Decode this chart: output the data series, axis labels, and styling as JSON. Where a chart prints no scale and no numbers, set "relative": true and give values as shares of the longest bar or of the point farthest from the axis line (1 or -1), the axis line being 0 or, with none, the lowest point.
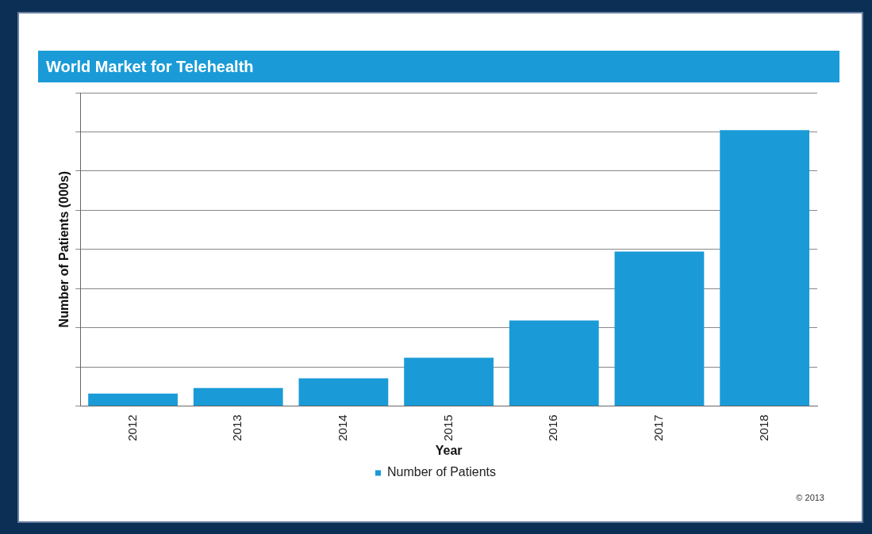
{
  "chart_data": {
    "type": "bar",
    "title": "World Market for Telehealth",
    "xlabel": "Year",
    "ylabel": "Number of Patients (000s)",
    "categories": [
      "2012",
      "2013",
      "2014",
      "2015",
      "2016",
      "2017",
      "2018"
    ],
    "series": [
      {
        "name": "Number of Patients",
        "color": "#1a9bd7",
        "values": [
          0.045,
          0.065,
          0.1,
          0.175,
          0.31,
          0.56,
          1
        ]
      }
    ],
    "relative": true,
    "grid": "y",
    "legend": "bottom",
    "annotations": [
      "© 2013"
    ]
  }
}
